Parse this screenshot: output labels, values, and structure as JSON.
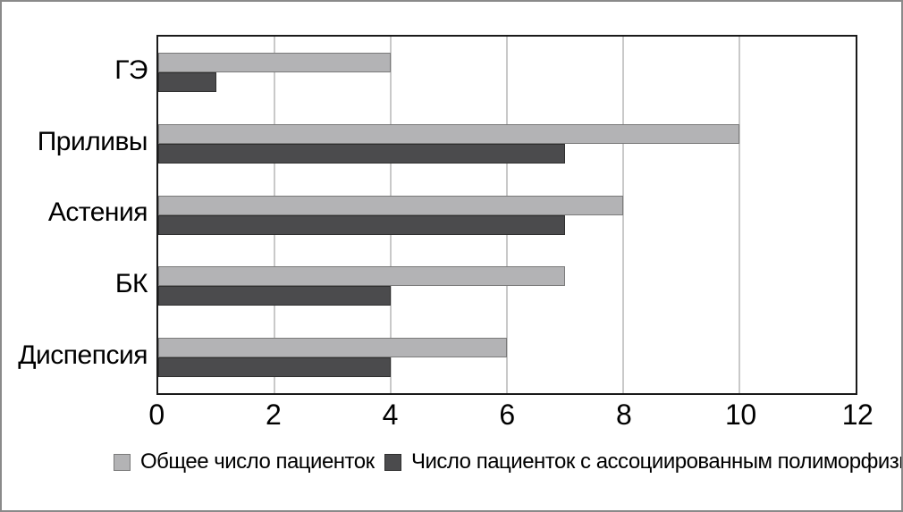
{
  "chart_data": {
    "type": "bar",
    "orientation": "horizontal",
    "categories": [
      "ГЭ",
      "Приливы",
      "Астения",
      "БК",
      "Диспепсия"
    ],
    "series": [
      {
        "name": "Общее число пациенток",
        "values": [
          4,
          10,
          8,
          7,
          6
        ],
        "color": "#b3b3b5",
        "border_color": "#7a7a7a"
      },
      {
        "name": "Число пациенток с ассоциированным полиморфизмом",
        "values": [
          1,
          7,
          7,
          4,
          4
        ],
        "color": "#4b4b4d",
        "border_color": "#2f2f2f"
      }
    ],
    "xlim": [
      0,
      12
    ],
    "x_ticks": [
      0,
      2,
      4,
      6,
      8,
      10,
      12
    ],
    "grid": "vertical",
    "legend_position": "bottom",
    "colors": {
      "gridline": "#c9c9c9",
      "plot_border": "#1a1a1a",
      "outer_border": "#8a8a8a",
      "background": "#ffffff",
      "text": "#000000"
    }
  }
}
